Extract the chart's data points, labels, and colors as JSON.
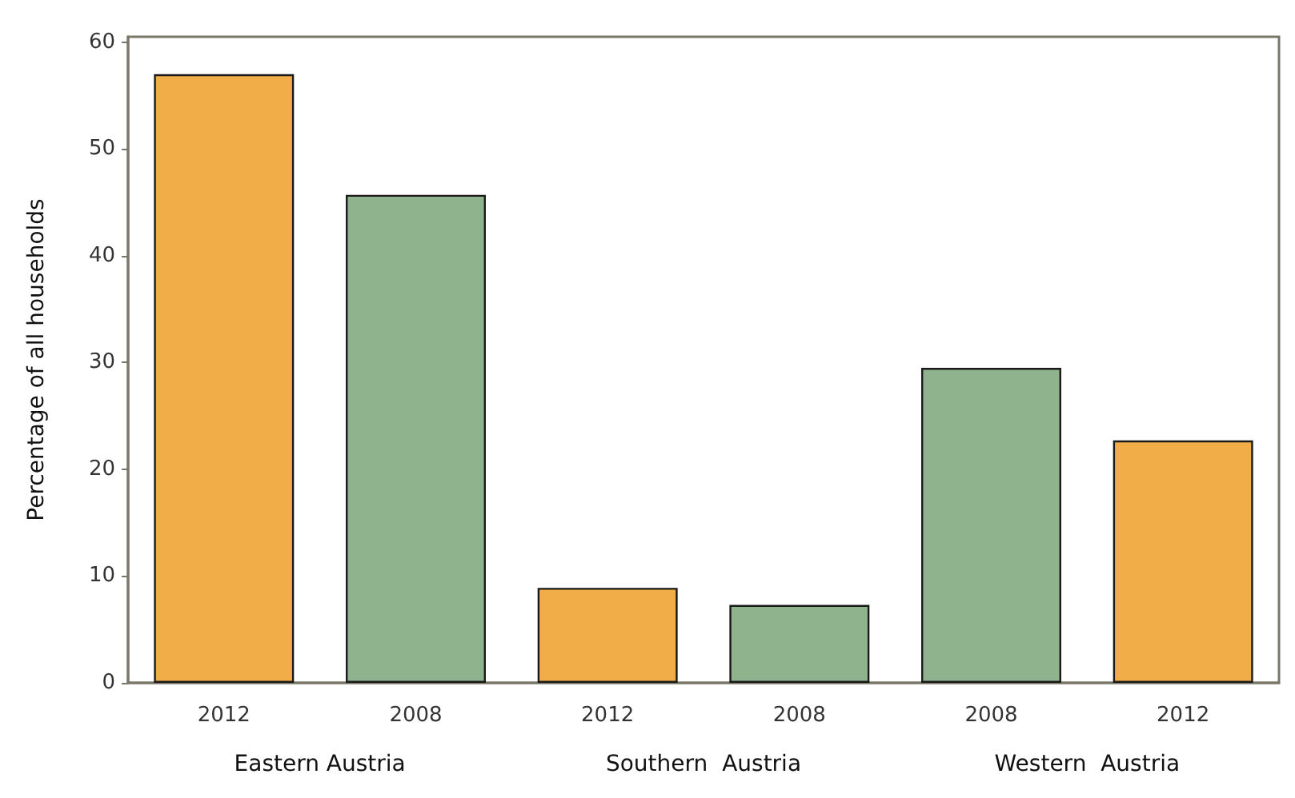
{
  "chart_data": {
    "type": "bar",
    "ylabel": "Percentage of all households",
    "categories": [
      "2012",
      "2008",
      "2012",
      "2008",
      "2008",
      "2012"
    ],
    "values": [
      57,
      45.7,
      8.9,
      7.3,
      29.5,
      22.7
    ],
    "colors": [
      "#f0ad48",
      "#8fb38d",
      "#f0ad48",
      "#8fb38d",
      "#8fb38d",
      "#f0ad48"
    ],
    "ylim": [
      0,
      60.5
    ],
    "yticks": [
      0,
      10,
      20,
      30,
      40,
      50,
      60
    ],
    "annotations": [
      "Eastern Austria",
      "Southern  Austria",
      "Western  Austria"
    ]
  }
}
